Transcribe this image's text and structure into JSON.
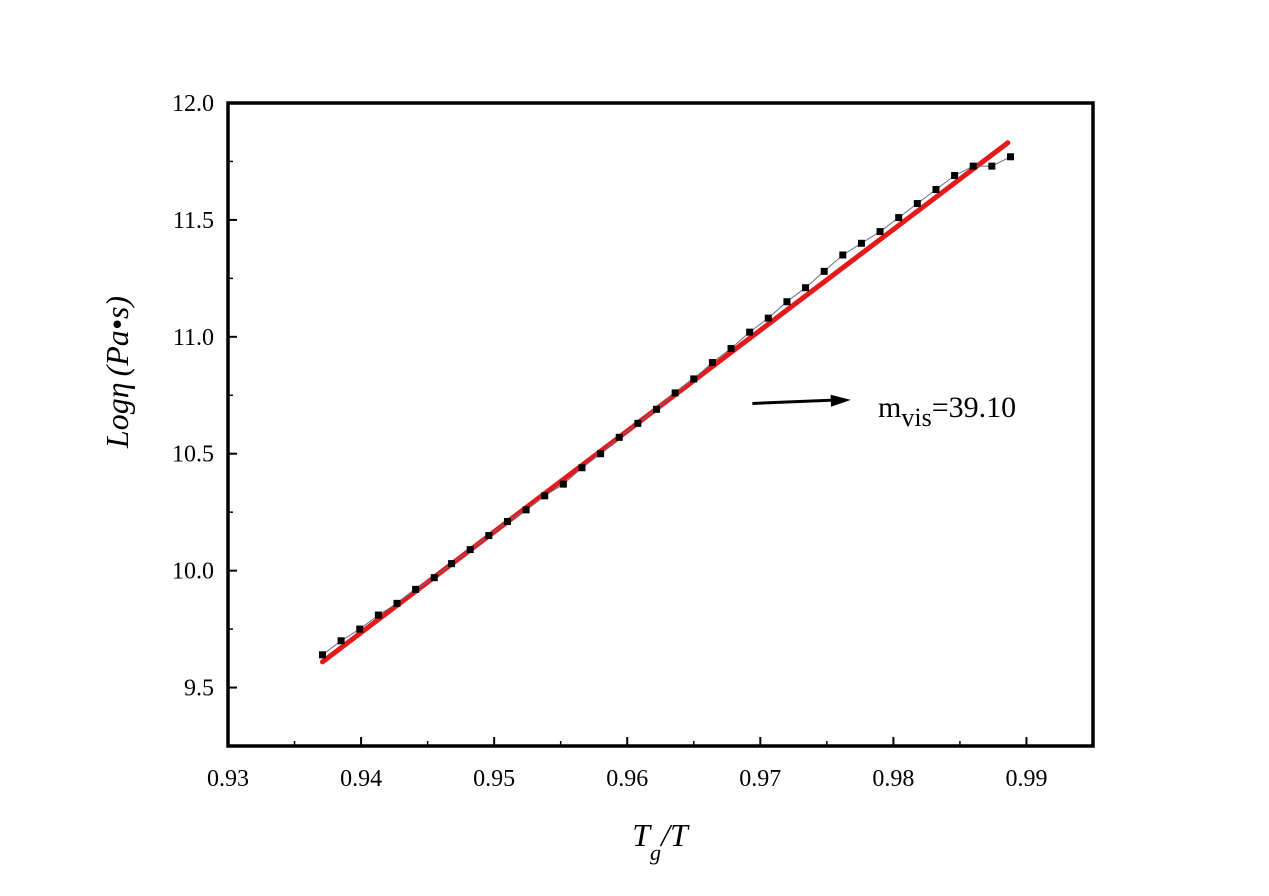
{
  "chart_data": {
    "type": "scatter",
    "xlabel": {
      "main": "T",
      "sub": "g",
      "rest": "/T"
    },
    "ylabel": {
      "main": "Log",
      "greek": "η",
      "paren": "(Pa•s)"
    },
    "xlim": [
      0.93,
      0.995
    ],
    "ylim": [
      9.25,
      12.0
    ],
    "xticks": [
      "0.93",
      "0.94",
      "0.95",
      "0.96",
      "0.97",
      "0.98",
      "0.99"
    ],
    "xtick_values": [
      0.93,
      0.94,
      0.95,
      0.96,
      0.97,
      0.98,
      0.99
    ],
    "yticks": [
      "9.5",
      "10.0",
      "10.5",
      "11.0",
      "11.5",
      "12.0"
    ],
    "ytick_values": [
      9.5,
      10.0,
      10.5,
      11.0,
      11.5,
      12.0
    ],
    "grid": false,
    "series": [
      {
        "kind": "points",
        "marker": "square",
        "color": "#000000",
        "x": [
          0.9371,
          0.9385,
          0.9399,
          0.9413,
          0.9427,
          0.9441,
          0.9455,
          0.9468,
          0.9482,
          0.9496,
          0.951,
          0.9524,
          0.9538,
          0.9552,
          0.9566,
          0.958,
          0.9594,
          0.9608,
          0.9622,
          0.9636,
          0.965,
          0.9664,
          0.9678,
          0.9692,
          0.9706,
          0.972,
          0.9734,
          0.9748,
          0.9762,
          0.9776,
          0.979,
          0.9804,
          0.9818,
          0.9832,
          0.9846,
          0.986,
          0.9874,
          0.9888
        ],
        "y": [
          9.64,
          9.7,
          9.75,
          9.81,
          9.86,
          9.92,
          9.97,
          10.03,
          10.09,
          10.15,
          10.21,
          10.26,
          10.32,
          10.37,
          10.44,
          10.5,
          10.57,
          10.63,
          10.69,
          10.76,
          10.82,
          10.89,
          10.95,
          11.02,
          11.08,
          11.15,
          11.21,
          11.28,
          11.35,
          11.4,
          11.45,
          11.51,
          11.57,
          11.63,
          11.69,
          11.73,
          11.73,
          11.77
        ]
      },
      {
        "kind": "fit-line",
        "color": "#e31a1c",
        "x": [
          0.9371,
          0.9886
        ],
        "y": [
          9.61,
          11.83
        ]
      }
    ],
    "annotation": {
      "text_main": "m",
      "text_sub": "vis",
      "text_rest": "=39.10",
      "arrow_from": [
        0.9694,
        10.715
      ],
      "arrow_to": [
        0.9768,
        10.73
      ]
    }
  }
}
